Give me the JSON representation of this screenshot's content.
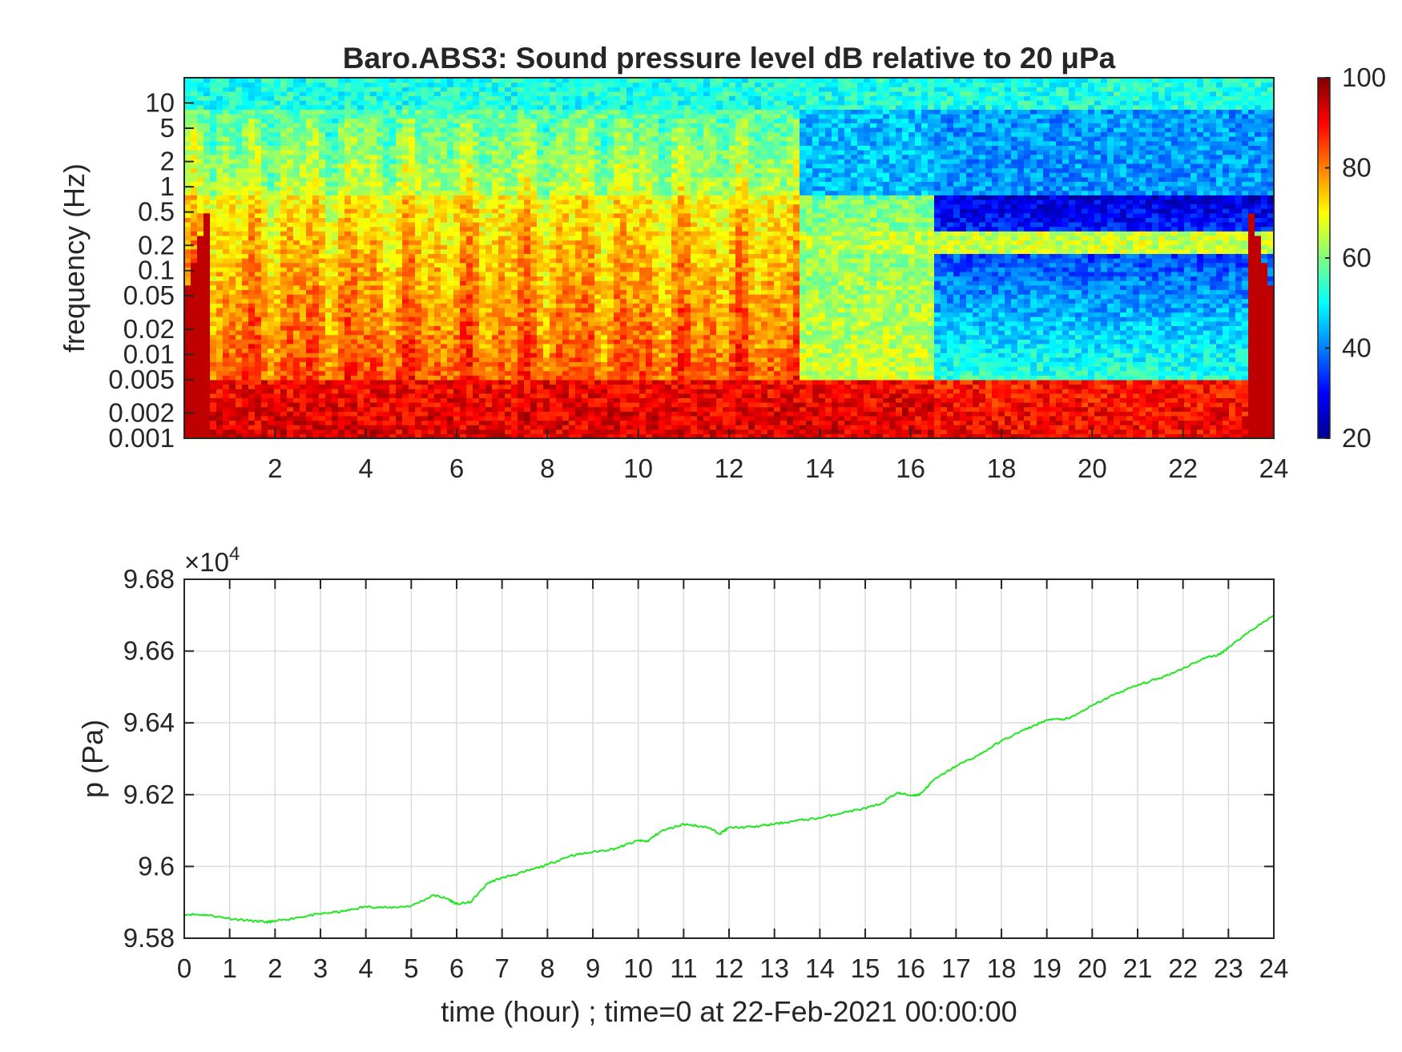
{
  "chart_data": [
    {
      "type": "heatmap",
      "title": "Baro.ABS3: Sound pressure level dB relative to 20 μPa",
      "xlabel": "",
      "ylabel": "frequency (Hz)",
      "x_axis": {
        "range": [
          0,
          24
        ],
        "tick_labels": [
          "2",
          "4",
          "6",
          "8",
          "10",
          "12",
          "14",
          "16",
          "18",
          "20",
          "22",
          "24"
        ]
      },
      "y_axis": {
        "scale": "log",
        "range": [
          0.001,
          20
        ],
        "tick_labels": [
          "0.001",
          "0.002",
          "0.005",
          "0.01",
          "0.02",
          "0.05",
          "0.1",
          "0.2",
          "0.5",
          "1",
          "2",
          "5",
          "10"
        ]
      },
      "colorbar": {
        "colormap": "jet",
        "range": [
          20,
          100
        ],
        "tick_labels": [
          "20",
          "40",
          "60",
          "80",
          "100"
        ]
      },
      "regimes": [
        {
          "hours": [
            0,
            13.5
          ],
          "description_values_dB": {
            "0.001-0.005 Hz": 90,
            "0.01-0.5 Hz": 82,
            "1-5 Hz": 62,
            "10-20 Hz": 52
          }
        },
        {
          "hours": [
            13.5,
            16.5
          ],
          "description_values_dB": {
            "0.001-0.005 Hz": 90,
            "0.01-0.1 Hz": 65,
            "0.2 Hz": 65,
            "1-5 Hz": 45,
            "10-20 Hz": 52
          }
        },
        {
          "hours": [
            16.5,
            24
          ],
          "description_values_dB": {
            "0.001-0.005 Hz": 88,
            "0.01-0.1 Hz": 50,
            "0.2 Hz": 66,
            "1-5 Hz": 42,
            "10-20 Hz": 52
          }
        }
      ]
    },
    {
      "type": "line",
      "title": "",
      "xlabel": "time (hour) ; time=0 at 22-Feb-2021 00:00:00",
      "ylabel": "p (Pa)",
      "y_exponent_label": "×10",
      "y_exponent_power": "4",
      "xlim": [
        0,
        24
      ],
      "ylim": [
        95800,
        96800
      ],
      "x_tick_labels": [
        "0",
        "1",
        "2",
        "3",
        "4",
        "5",
        "6",
        "7",
        "8",
        "9",
        "10",
        "11",
        "12",
        "13",
        "14",
        "15",
        "16",
        "17",
        "18",
        "19",
        "20",
        "21",
        "22",
        "23",
        "24"
      ],
      "y_tick_labels": [
        "9.58",
        "9.6",
        "9.62",
        "9.64",
        "9.66",
        "9.68"
      ],
      "grid": true,
      "line_color": "#22e622",
      "series": [
        {
          "x": [
            0,
            0.5,
            1,
            1.5,
            1.8,
            2,
            2.5,
            3,
            3.5,
            4,
            4.5,
            5,
            5.5,
            5.8,
            6,
            6.3,
            6.7,
            7,
            7.5,
            8,
            8.5,
            9,
            9.5,
            10,
            10.2,
            10.5,
            11,
            11.5,
            11.8,
            12,
            12.5,
            13,
            13.5,
            14,
            14.5,
            15,
            15.3,
            15.7,
            16,
            16.2,
            16.5,
            17,
            17.5,
            18,
            18.5,
            19,
            19.5,
            20,
            20.5,
            21,
            21.5,
            22,
            22.5,
            22.8,
            23,
            23.5,
            24
          ],
          "y": [
            95867,
            95865,
            95855,
            95848,
            95845,
            95847,
            95858,
            95868,
            95875,
            95888,
            95885,
            95890,
            95920,
            95910,
            95895,
            95900,
            95955,
            95968,
            95985,
            96005,
            96030,
            96040,
            96050,
            96072,
            96070,
            96098,
            96118,
            96110,
            96092,
            96108,
            96110,
            96118,
            96128,
            96135,
            96150,
            96162,
            96172,
            96205,
            96198,
            96200,
            96240,
            96280,
            96310,
            96350,
            96380,
            96408,
            96412,
            96448,
            96480,
            96505,
            96525,
            96552,
            96582,
            96590,
            96610,
            96658,
            96700
          ]
        }
      ]
    }
  ]
}
